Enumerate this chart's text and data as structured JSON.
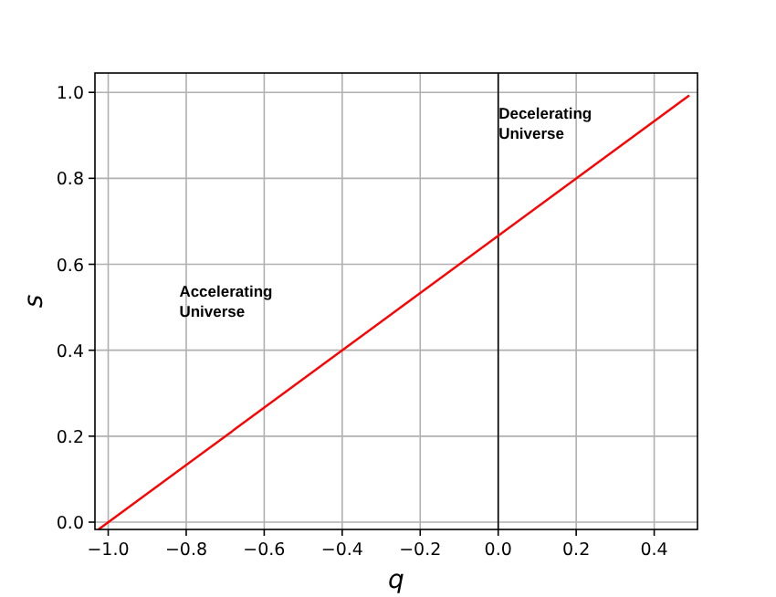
{
  "chart_data": {
    "type": "line",
    "xlabel": "q",
    "ylabel": "s",
    "x": [
      -1.025,
      0.49
    ],
    "series": [
      {
        "color": "#ff0000",
        "values": [
          -0.017,
          0.993
        ]
      }
    ],
    "xlim": [
      -1.034,
      0.511
    ],
    "ylim": [
      -0.017,
      1.045
    ],
    "xticks": [
      {
        "value": -1.0,
        "label": "−1.0"
      },
      {
        "value": -0.8,
        "label": "−0.8"
      },
      {
        "value": -0.6,
        "label": "−0.6"
      },
      {
        "value": -0.4,
        "label": "−0.4"
      },
      {
        "value": -0.2,
        "label": "−0.2"
      },
      {
        "value": 0,
        "label": "0.0"
      },
      {
        "value": 0.2,
        "label": "0.2"
      },
      {
        "value": 0.4,
        "label": "0.4"
      }
    ],
    "yticks": [
      {
        "value": 0,
        "label": "0.0"
      },
      {
        "value": 0.2,
        "label": "0.2"
      },
      {
        "value": 0.4,
        "label": "0.4"
      },
      {
        "value": 0.6,
        "label": "0.6"
      },
      {
        "value": 0.8,
        "label": "0.8"
      },
      {
        "value": 1.0,
        "label": "1.0"
      }
    ],
    "grid": true,
    "marker": "none",
    "line_style": "solid",
    "ref_lines": [
      {
        "axis": "x",
        "value": 0,
        "color": "#000000"
      }
    ],
    "annotations": [
      "Accelerating\nUniverse",
      "Decelerating\nUniverse"
    ]
  }
}
